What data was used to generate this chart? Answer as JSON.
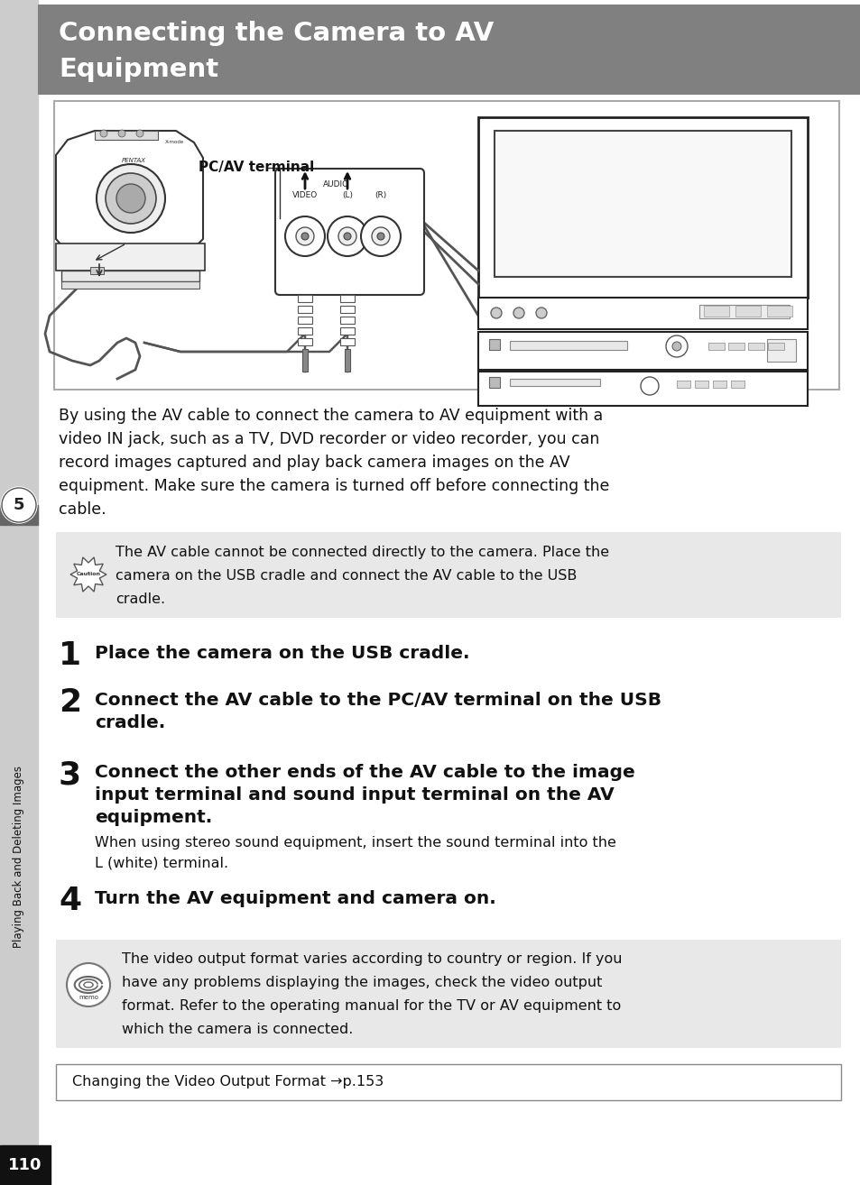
{
  "title_line1": "Connecting the Camera to AV",
  "title_line2": "Equipment",
  "title_bg_color": "#808080",
  "title_text_color": "#ffffff",
  "page_bg_color": "#ffffff",
  "sidebar_color": "#cccccc",
  "sidebar_dark_color": "#666666",
  "sidebar_label": "Playing Back and Deleting Images",
  "sidebar_number": "5",
  "page_number": "110",
  "body_lines": [
    "By using the AV cable to connect the camera to AV equipment with a",
    "video IN jack, such as a TV, DVD recorder or video recorder, you can",
    "record images captured and play back camera images on the AV",
    "equipment. Make sure the camera is turned off before connecting the",
    "cable."
  ],
  "caution_bg": "#e8e8e8",
  "caution_lines": [
    "The AV cable cannot be connected directly to the camera. Place the",
    "camera on the USB cradle and connect the AV cable to the USB",
    "cradle."
  ],
  "memo_bg": "#e8e8e8",
  "memo_lines": [
    "The video output format varies according to country or region. If you",
    "have any problems displaying the images, check the video output",
    "format. Refer to the operating manual for the TV or AV equipment to",
    "which the camera is connected."
  ],
  "step1_bold": "Place the camera on the USB cradle.",
  "step2_bold_line1": "Connect the AV cable to the PC/AV terminal on the USB",
  "step2_bold_line2": "cradle.",
  "step3_bold_line1": "Connect the other ends of the AV cable to the image",
  "step3_bold_line2": "input terminal and sound input terminal on the AV",
  "step3_bold_line3": "equipment.",
  "step3_detail_line1": "When using stereo sound equipment, insert the sound terminal into the",
  "step3_detail_line2": "L (white) terminal.",
  "step4_bold": "Turn the AV equipment and camera on.",
  "ref_text": "Changing the Video Output Format →p.153",
  "diagram_label": "PC/AV terminal"
}
